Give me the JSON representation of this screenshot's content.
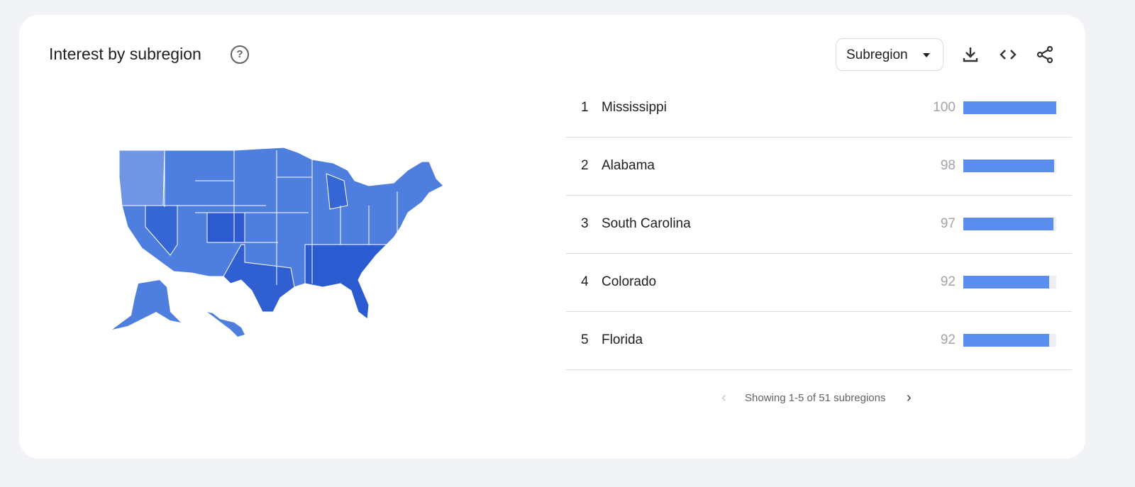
{
  "header": {
    "title": "Interest by subregion",
    "help_icon": "help-circle-icon",
    "dropdown": "Subregion",
    "actions": [
      "download-icon",
      "embed-code-icon",
      "share-icon"
    ]
  },
  "map": {
    "region": "United States",
    "color_scale": [
      "#7a9fe6",
      "#2b5bd0"
    ]
  },
  "list": [
    {
      "rank": "1",
      "name": "Mississippi",
      "value": 100
    },
    {
      "rank": "2",
      "name": "Alabama",
      "value": 98
    },
    {
      "rank": "3",
      "name": "South Carolina",
      "value": 97
    },
    {
      "rank": "4",
      "name": "Colorado",
      "value": 92
    },
    {
      "rank": "5",
      "name": "Florida",
      "value": 92
    }
  ],
  "pagination": {
    "text": "Showing 1-5 of 51 subregions"
  },
  "colors": {
    "bar": "#5b8def",
    "track": "#eceef2"
  }
}
